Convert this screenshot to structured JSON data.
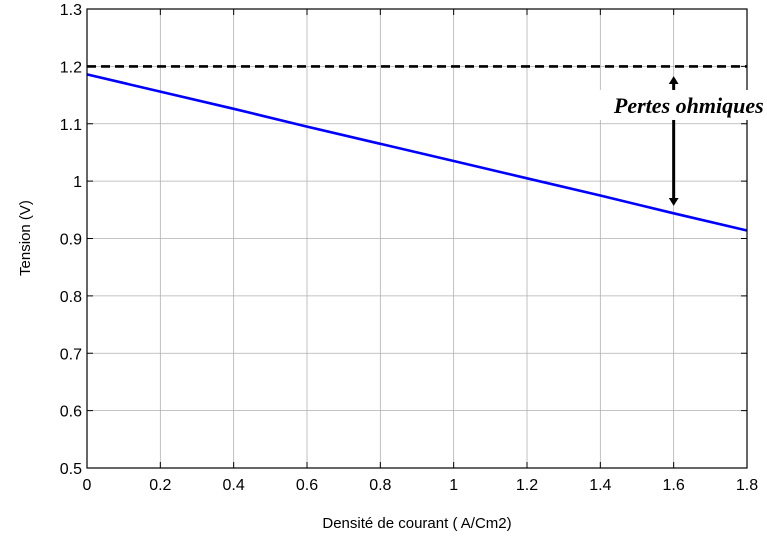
{
  "chart_data": {
    "type": "line",
    "xlabel": "Densité de courant ( A/Cm2)",
    "ylabel": "Tension (V)",
    "xlim": [
      0,
      1.8
    ],
    "ylim": [
      0.5,
      1.3
    ],
    "grid": true,
    "x_ticks": [
      "0",
      "0.2",
      "0.4",
      "0.6",
      "0.8",
      "1",
      "1.2",
      "1.4",
      "1.6",
      "1.8"
    ],
    "y_ticks": [
      "0.5",
      "0.6",
      "0.7",
      "0.8",
      "0.9",
      "1",
      "1.1",
      "1.2",
      "1.3"
    ],
    "series": [
      {
        "style": "solid",
        "color": "#0000ff",
        "x": [
          0,
          0.2,
          0.4,
          0.6,
          0.8,
          1.0,
          1.2,
          1.4,
          1.6,
          1.8
        ],
        "y": [
          1.186,
          1.156,
          1.126,
          1.095,
          1.065,
          1.035,
          1.005,
          0.975,
          0.944,
          0.914
        ]
      },
      {
        "style": "dashed",
        "color": "#000000",
        "x": [
          0,
          1.8
        ],
        "y": [
          1.2,
          1.2
        ]
      }
    ],
    "annotations": [
      {
        "text": "Pertes ohmiques",
        "x": 1.6,
        "y_from": 1.19,
        "y_to": 0.95
      }
    ]
  }
}
